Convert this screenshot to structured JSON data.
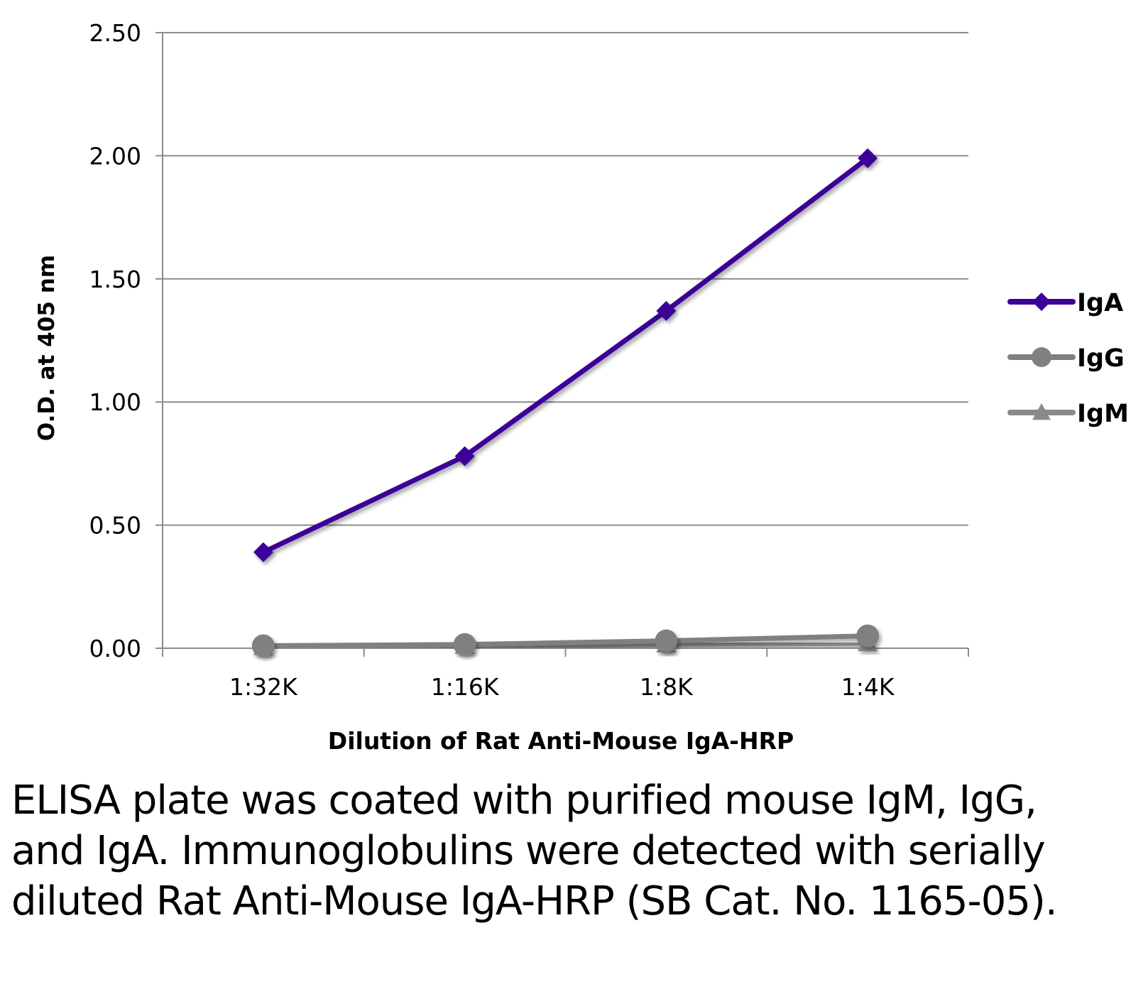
{
  "chart_data": {
    "type": "line",
    "categories": [
      "1:32K",
      "1:16K",
      "1:8K",
      "1:4K"
    ],
    "series": [
      {
        "name": "IgA",
        "values": [
          0.39,
          0.78,
          1.37,
          1.99
        ],
        "color": "#3d0099",
        "marker": "diamond"
      },
      {
        "name": "IgG",
        "values": [
          0.01,
          0.015,
          0.03,
          0.05
        ],
        "color": "#808080",
        "marker": "circle"
      },
      {
        "name": "IgM",
        "values": [
          0.005,
          0.01,
          0.015,
          0.02
        ],
        "color": "#8a8a8a",
        "marker": "triangle"
      }
    ],
    "yticks": [
      "0.00",
      "0.50",
      "1.00",
      "1.50",
      "2.00",
      "2.50"
    ],
    "ylim": [
      0,
      2.5
    ],
    "xlabel": "Dilution of Rat Anti-Mouse IgA-HRP",
    "ylabel": "O.D. at 405 nm",
    "grid": true,
    "legend": "right"
  },
  "caption": "ELISA plate was coated with purified mouse IgM, IgG, and IgA.  Immunoglobulins were detected with serially diluted Rat Anti-Mouse IgA-HRP (SB Cat. No. 1165-05)."
}
